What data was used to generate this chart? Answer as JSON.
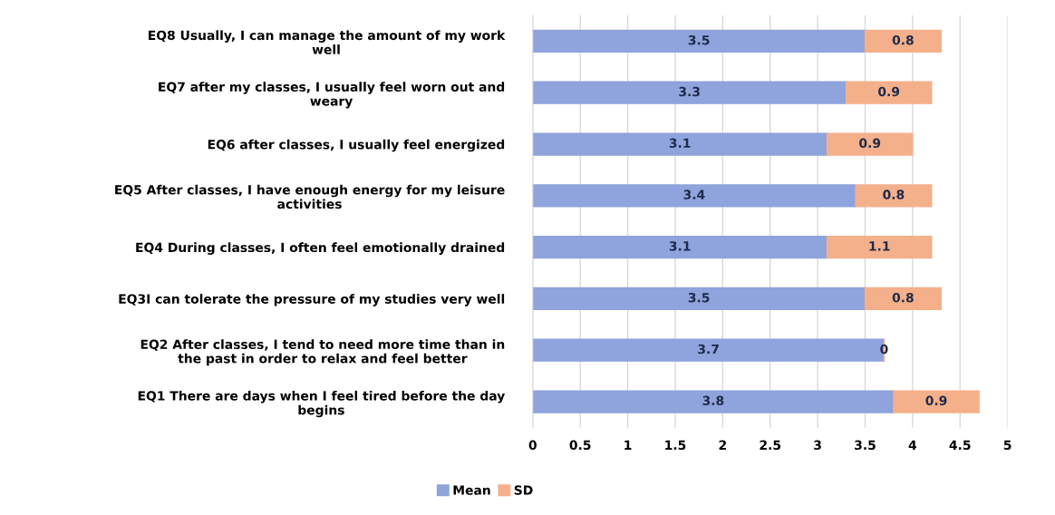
{
  "chart_data": {
    "type": "bar",
    "orientation": "horizontal",
    "stacked": true,
    "categories": [
      "EQ8 Usually, I can manage the amount of my work\nwell",
      "EQ7 after my classes, I usually feel worn out and\nweary",
      "EQ6 after classes, I usually feel energized",
      "EQ5 After classes, I have enough energy for my leisure\nactivities",
      "EQ4 During classes, I often feel emotionally drained",
      "EQ3I can tolerate the pressure of my studies very well",
      "EQ2 After classes, I tend to need more time than in\nthe past in order to relax and feel better",
      "EQ1 There are days when I feel tired before the day\nbegins"
    ],
    "series": [
      {
        "name": "Mean",
        "color": "#8fa3dc",
        "values": [
          3.5,
          3.3,
          3.1,
          3.4,
          3.1,
          3.5,
          3.7,
          3.8
        ]
      },
      {
        "name": "SD",
        "color": "#f4b08a",
        "values": [
          0.8,
          0.9,
          0.9,
          0.8,
          1.1,
          0.8,
          0,
          0.9
        ]
      }
    ],
    "xlim": [
      0,
      5
    ],
    "xticks": [
      0,
      0.5,
      1,
      1.5,
      2,
      2.5,
      3,
      3.5,
      4,
      4.5,
      5
    ],
    "grid": "x",
    "legend": "bottom",
    "data_labels": true
  }
}
